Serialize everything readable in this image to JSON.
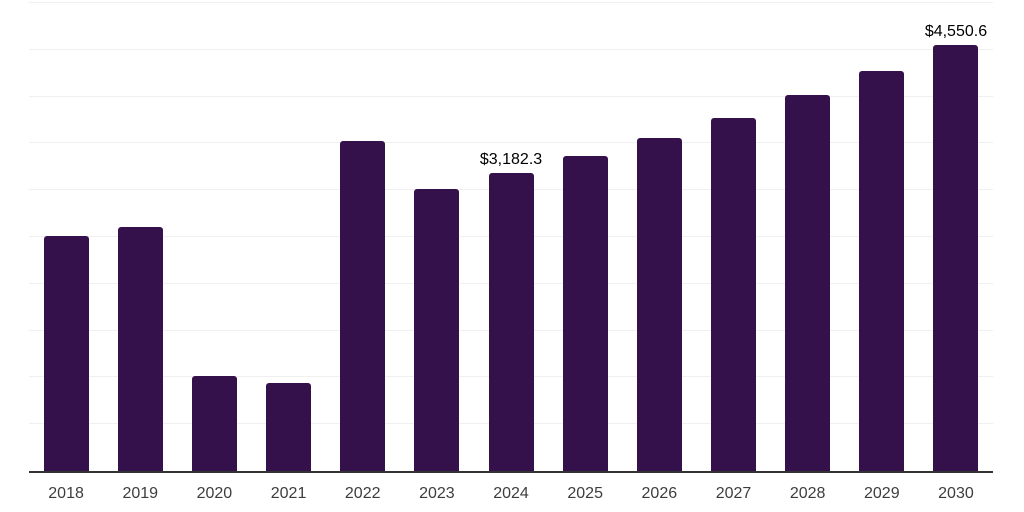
{
  "chart_data": {
    "type": "bar",
    "title": "",
    "xlabel": "",
    "ylabel": "",
    "categories": [
      "2018",
      "2019",
      "2020",
      "2021",
      "2022",
      "2023",
      "2024",
      "2025",
      "2026",
      "2027",
      "2028",
      "2029",
      "2030"
    ],
    "values": [
      2510,
      2605,
      1010,
      945,
      3530,
      3010,
      3182.3,
      3365,
      3560,
      3775,
      4020,
      4270,
      4550.6
    ],
    "data_labels": {
      "2024": "$3,182.3",
      "2030": "$4,550.6"
    },
    "ylim": [
      0,
      5000
    ],
    "gridline_step": 500,
    "grid": "horizontal",
    "legend": "none",
    "colors": {
      "bar": "#35114c",
      "gridline": "#f0f0f0",
      "axis_line": "#333333",
      "data_label": "#000000",
      "tick_label": "#3d3d3d"
    }
  }
}
